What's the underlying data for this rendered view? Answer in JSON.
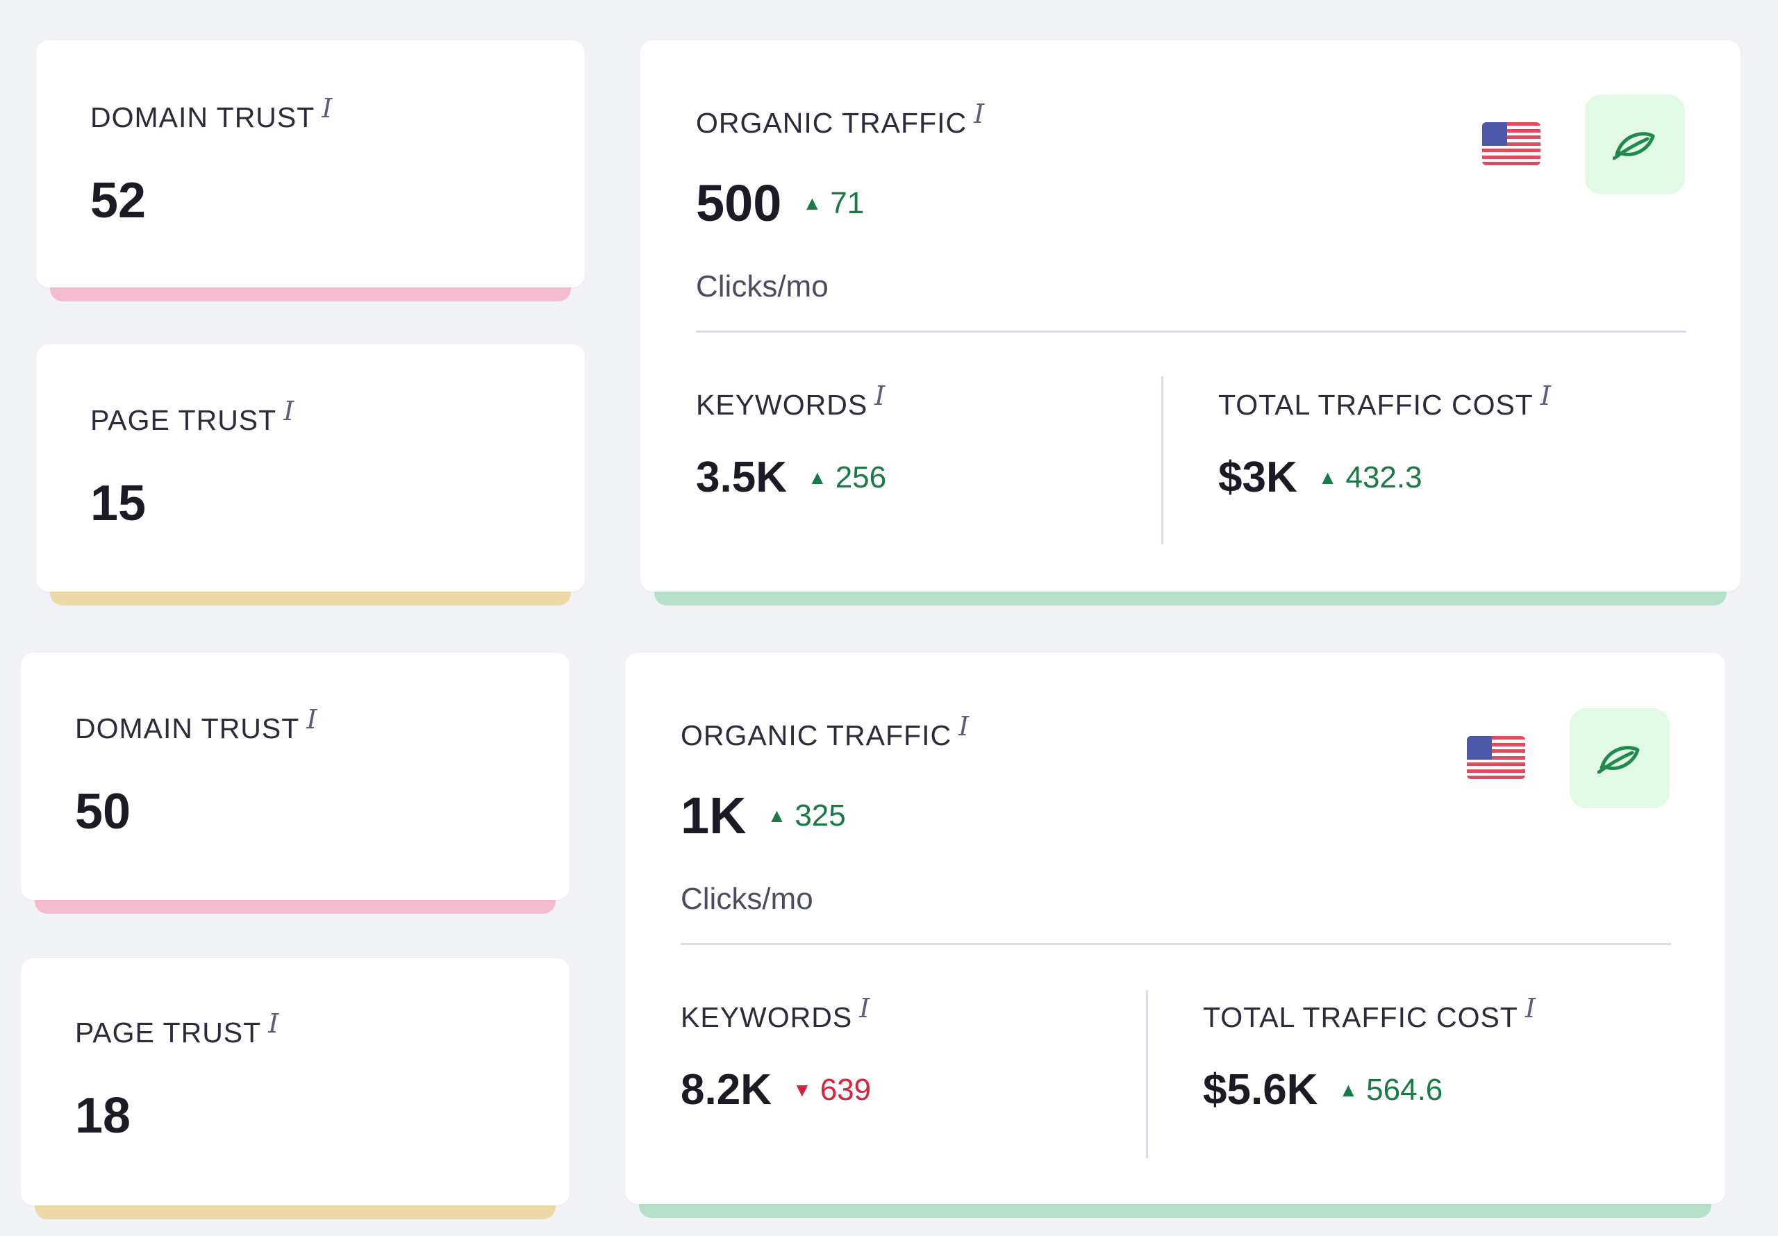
{
  "colors": {
    "pink_accent": "#f5bcd0",
    "yellow_accent": "#ecd9a7",
    "green_accent": "#b5e0c9",
    "up": "#1a7a45",
    "down": "#d6223b",
    "leaf_bg": "#e2f9e6",
    "leaf_stroke": "#1f8a4a"
  },
  "icons": {
    "info": "info-icon",
    "flag": "us-flag-icon",
    "leaf": "leaf-icon",
    "up": "triangle-up-icon",
    "down": "triangle-down-icon"
  },
  "blocks": [
    {
      "domain_trust": {
        "label": "DOMAIN TRUST",
        "info": "i",
        "value": "52"
      },
      "page_trust": {
        "label": "PAGE TRUST",
        "info": "i",
        "value": "15"
      },
      "organic": {
        "label": "ORGANIC TRAFFIC",
        "info": "i",
        "value": "500",
        "delta_dir": "up",
        "delta_arrow": "▲",
        "delta": "71",
        "unit": "Clicks/mo",
        "keywords": {
          "label": "KEYWORDS",
          "info": "i",
          "value": "3.5K",
          "delta_dir": "up",
          "delta_arrow": "▲",
          "delta": "256"
        },
        "cost": {
          "label": "TOTAL TRAFFIC COST",
          "info": "i",
          "value": "$3K",
          "delta_dir": "up",
          "delta_arrow": "▲",
          "delta": "432.3"
        }
      }
    },
    {
      "domain_trust": {
        "label": "DOMAIN TRUST",
        "info": "i",
        "value": "50"
      },
      "page_trust": {
        "label": "PAGE TRUST",
        "info": "i",
        "value": "18"
      },
      "organic": {
        "label": "ORGANIC TRAFFIC",
        "info": "i",
        "value": "1K",
        "delta_dir": "up",
        "delta_arrow": "▲",
        "delta": "325",
        "unit": "Clicks/mo",
        "keywords": {
          "label": "KEYWORDS",
          "info": "i",
          "value": "8.2K",
          "delta_dir": "down",
          "delta_arrow": "▼",
          "delta": "639"
        },
        "cost": {
          "label": "TOTAL TRAFFIC COST",
          "info": "i",
          "value": "$5.6K",
          "delta_dir": "up",
          "delta_arrow": "▲",
          "delta": "564.6"
        }
      }
    }
  ]
}
